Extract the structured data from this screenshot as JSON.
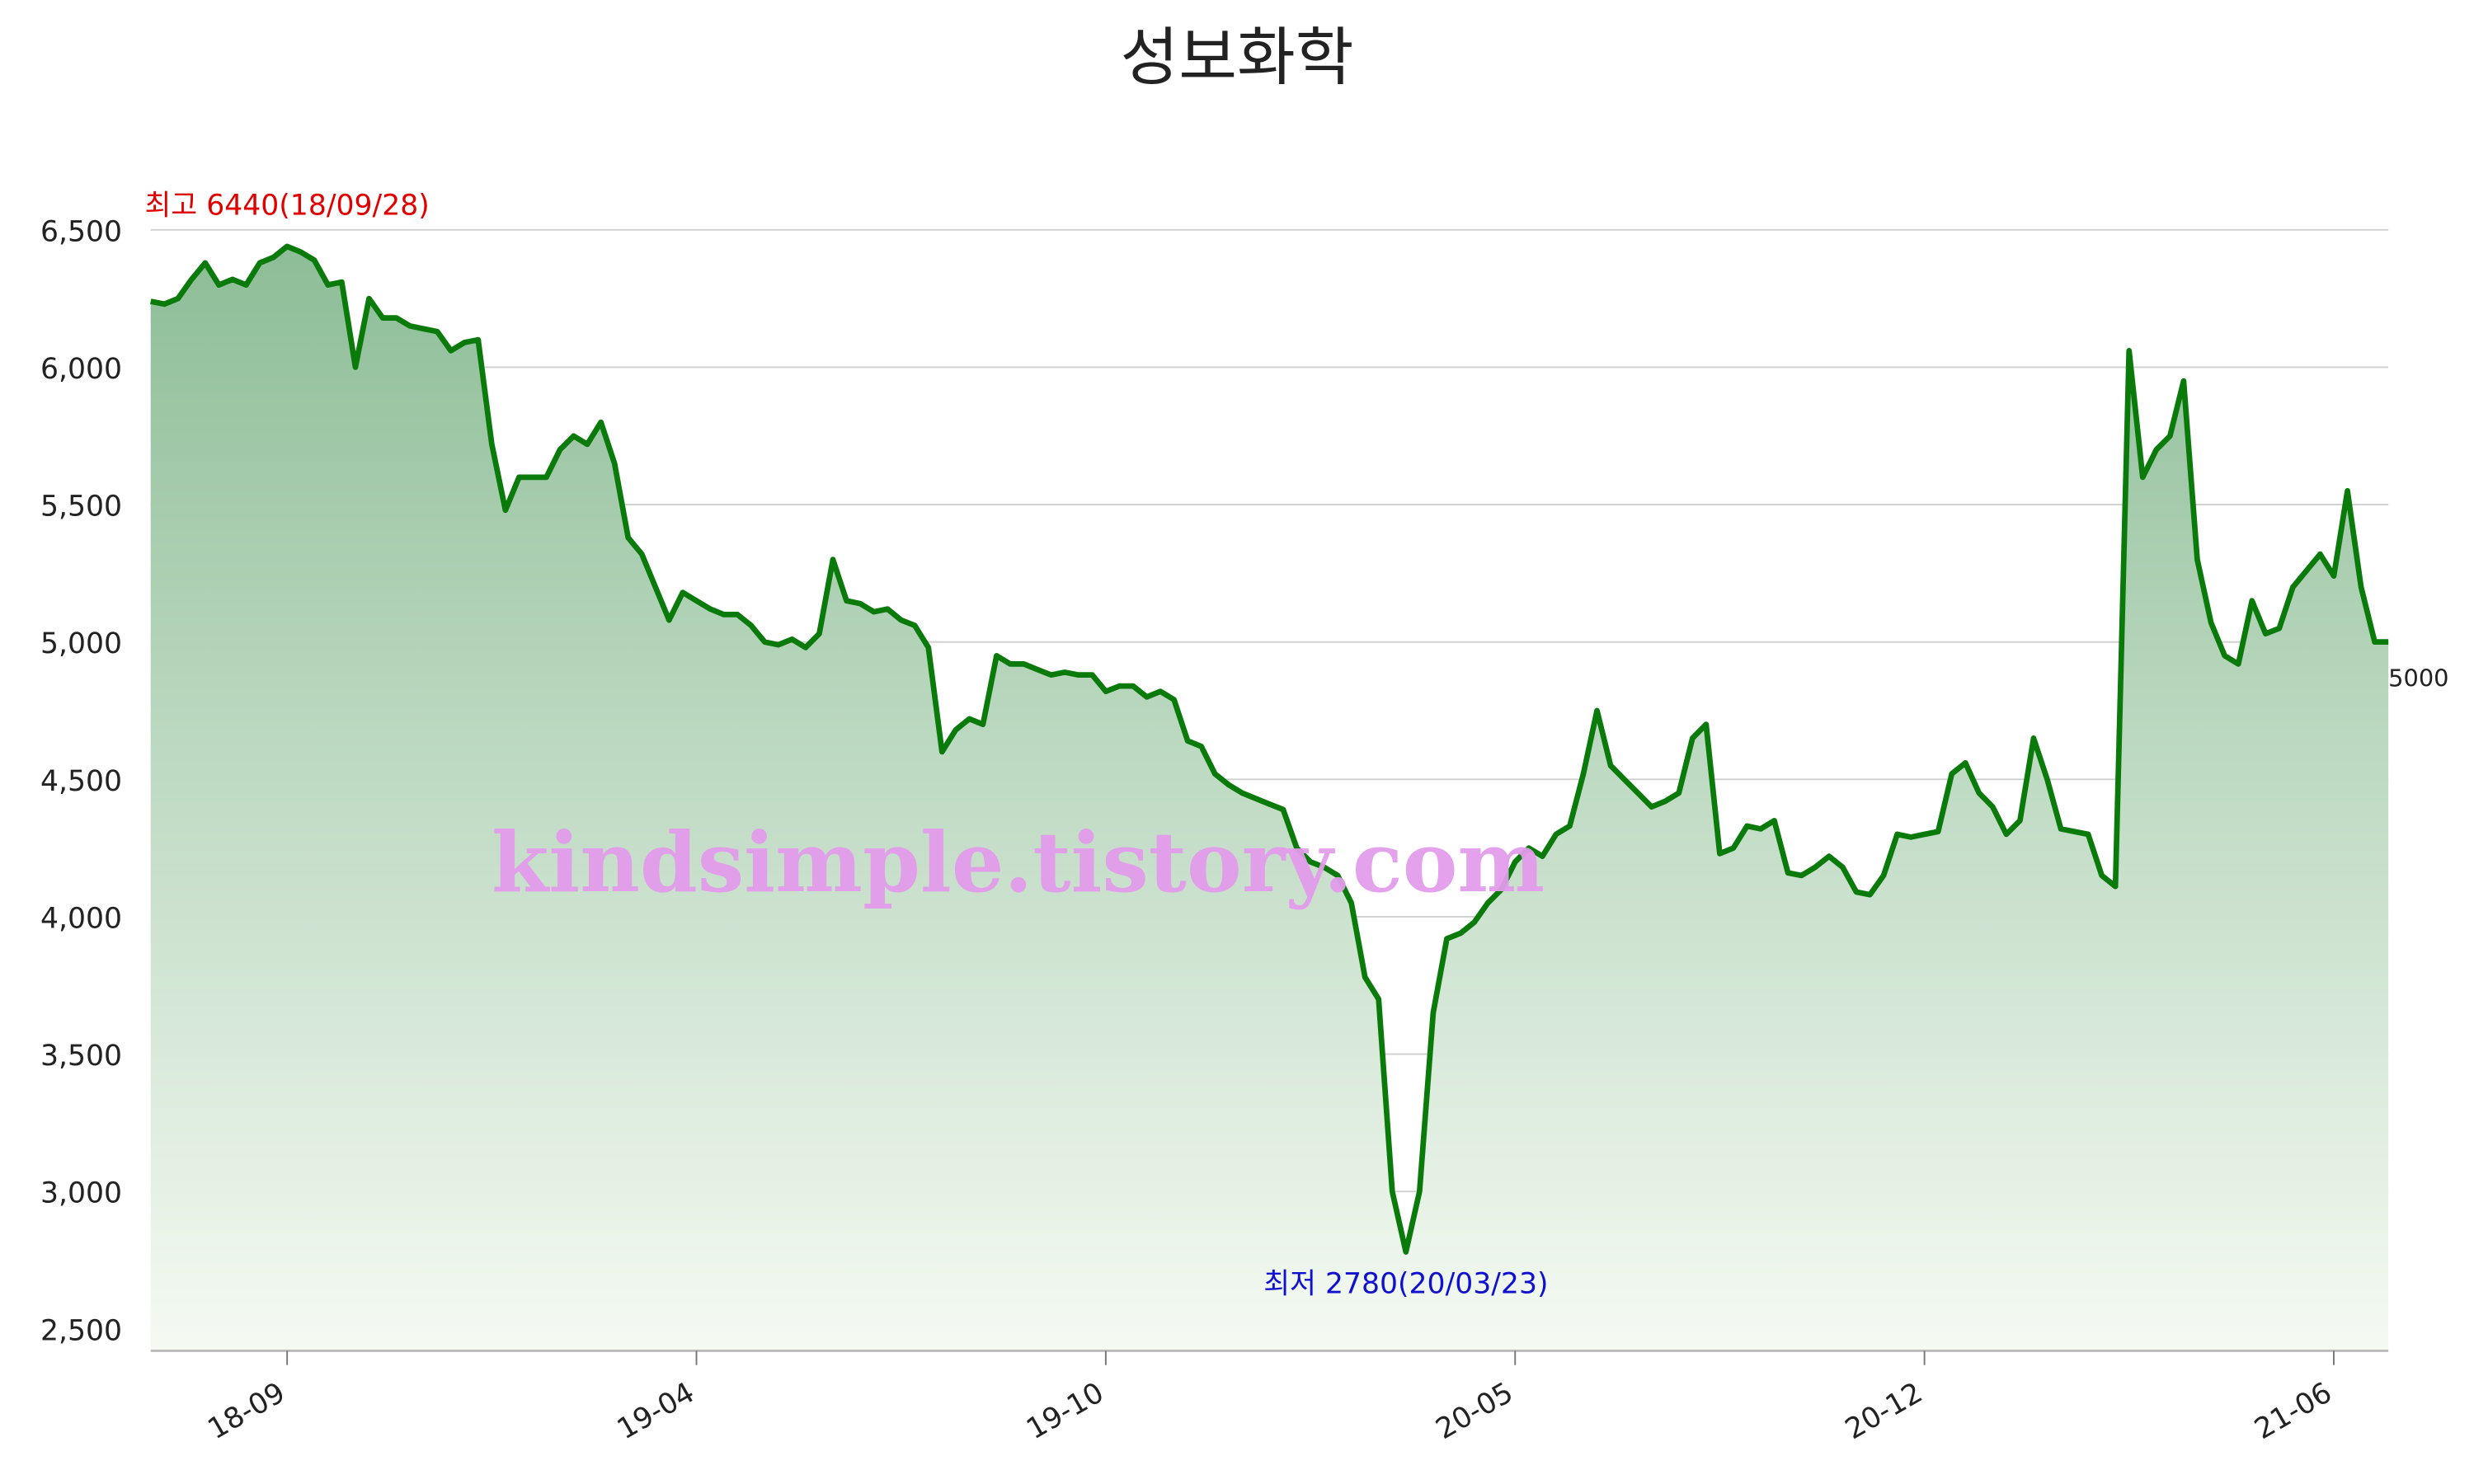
{
  "chart_data": {
    "type": "line",
    "title": "성보화학",
    "watermark": "kindsimple.tistory.com",
    "color": "#0a7a0a",
    "area_colors": [
      "#8dbd97",
      "#f5faf3"
    ],
    "grid": true,
    "ylim": [
      2420,
      6500
    ],
    "yticks": [
      {
        "value": 2500,
        "label": "2,500"
      },
      {
        "value": 3000,
        "label": "3,000"
      },
      {
        "value": 3500,
        "label": "3,500"
      },
      {
        "value": 4000,
        "label": "4,000"
      },
      {
        "value": 4500,
        "label": "4,500"
      },
      {
        "value": 5000,
        "label": "5,000"
      },
      {
        "value": 5500,
        "label": "5,500"
      },
      {
        "value": 6000,
        "label": "6,000"
      },
      {
        "value": 6500,
        "label": "6,500"
      }
    ],
    "categories": [
      null,
      null,
      null,
      null,
      null,
      null,
      null,
      null,
      null,
      null,
      "18-09",
      null,
      null,
      null,
      null,
      null,
      null,
      null,
      null,
      null,
      null,
      null,
      null,
      null,
      null,
      null,
      null,
      null,
      null,
      null,
      null,
      null,
      null,
      null,
      null,
      null,
      null,
      null,
      null,
      null,
      "19-04",
      null,
      null,
      null,
      null,
      null,
      null,
      null,
      null,
      null,
      null,
      null,
      null,
      null,
      null,
      null,
      null,
      null,
      null,
      null,
      null,
      null,
      null,
      null,
      null,
      null,
      null,
      null,
      null,
      null,
      "19-10",
      null,
      null,
      null,
      null,
      null,
      null,
      null,
      null,
      null,
      null,
      null,
      null,
      null,
      null,
      null,
      null,
      null,
      null,
      null,
      null,
      null,
      null,
      null,
      null,
      null,
      null,
      null,
      null,
      null,
      "20-05",
      null,
      null,
      null,
      null,
      null,
      null,
      null,
      null,
      null,
      null,
      null,
      null,
      null,
      null,
      null,
      null,
      null,
      null,
      null,
      null,
      null,
      null,
      null,
      null,
      null,
      null,
      null,
      null,
      null,
      "20-12",
      null,
      null,
      null,
      null,
      null,
      null,
      null,
      null,
      null,
      null,
      null,
      null,
      null,
      null,
      null,
      null,
      null,
      null,
      null,
      null,
      null,
      null,
      null,
      null,
      null,
      null,
      null,
      null,
      null,
      "21-06",
      null,
      null,
      null,
      null
    ],
    "values": [
      6240,
      6230,
      6250,
      6320,
      6380,
      6300,
      6320,
      6300,
      6380,
      6400,
      6440,
      6420,
      6390,
      6300,
      6310,
      6000,
      6250,
      6180,
      6180,
      6150,
      6140,
      6130,
      6060,
      6090,
      6100,
      5720,
      5480,
      5600,
      5600,
      5600,
      5700,
      5750,
      5720,
      5800,
      5650,
      5380,
      5320,
      5200,
      5080,
      5180,
      5150,
      5120,
      5100,
      5100,
      5060,
      5000,
      4990,
      5010,
      4980,
      5030,
      5300,
      5150,
      5140,
      5110,
      5120,
      5080,
      5060,
      4980,
      4600,
      4680,
      4720,
      4700,
      4950,
      4920,
      4920,
      4900,
      4880,
      4890,
      4880,
      4880,
      4820,
      4840,
      4840,
      4800,
      4820,
      4790,
      4640,
      4620,
      4520,
      4480,
      4450,
      4430,
      4410,
      4390,
      4250,
      4200,
      4180,
      4150,
      4050,
      3780,
      3700,
      3000,
      2780,
      3000,
      3650,
      3920,
      3940,
      3980,
      4050,
      4100,
      4200,
      4250,
      4220,
      4300,
      4330,
      4520,
      4750,
      4550,
      4500,
      4450,
      4400,
      4420,
      4450,
      4650,
      4700,
      4230,
      4250,
      4330,
      4320,
      4350,
      4160,
      4150,
      4180,
      4220,
      4180,
      4090,
      4080,
      4150,
      4300,
      4290,
      4300,
      4310,
      4520,
      4560,
      4450,
      4400,
      4300,
      4350,
      4650,
      4500,
      4320,
      4310,
      4300,
      4150,
      4110,
      6060,
      5600,
      5700,
      5750,
      5950,
      5300,
      5070,
      4950,
      4920,
      5150,
      5030,
      5050,
      5200,
      5260,
      5320,
      5240,
      5550,
      5200,
      5000,
      5000
    ],
    "annotations": [
      {
        "value": 6440,
        "label": "최고 6440(18/09/28)",
        "color": "#e00000",
        "position": "above"
      },
      {
        "value": 2780,
        "label": "최저 2780(20/03/23)",
        "color": "#1010d0",
        "position": "below"
      }
    ],
    "last_label": 5000
  }
}
